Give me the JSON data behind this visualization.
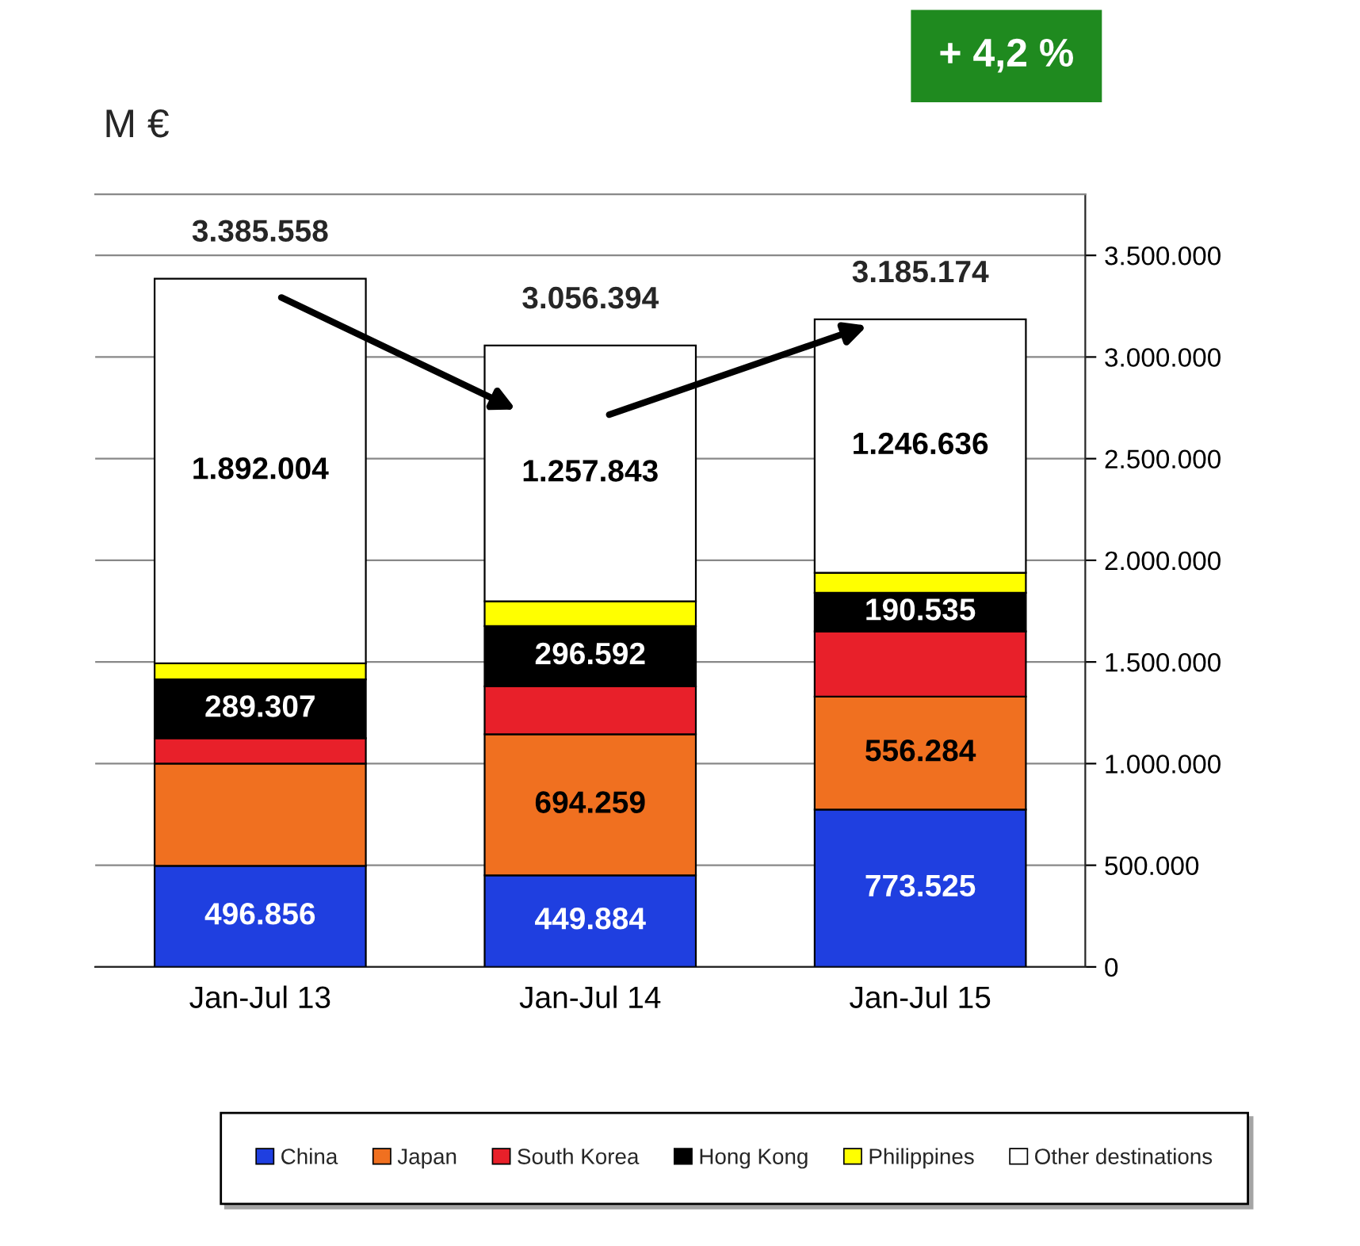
{
  "chart_data": {
    "type": "bar",
    "stacked": true,
    "ylabel": "M €",
    "categories": [
      "Jan-Jul 13",
      "Jan-Jul 14",
      "Jan-Jul 15"
    ],
    "series": [
      {
        "name": "China",
        "color": "#1f3fe0",
        "values": [
          496856,
          449884,
          773525
        ],
        "value_labels": [
          "496.856",
          "449.884",
          "773.525"
        ]
      },
      {
        "name": "Japan",
        "color": "#f07020",
        "values": [
          503000,
          694259,
          556284
        ],
        "value_labels": [
          null,
          "694.259",
          "556.284"
        ]
      },
      {
        "name": "South Korea",
        "color": "#e8202a",
        "values": [
          125000,
          236000,
          320000
        ]
      },
      {
        "name": "Hong Kong",
        "color": "#000000",
        "values": [
          289307,
          296592,
          190535
        ],
        "value_labels": [
          "289.307",
          "296.592",
          "190.535"
        ]
      },
      {
        "name": "Philippines",
        "color": "#ffff00",
        "values": [
          79391,
          121816,
          98194
        ]
      },
      {
        "name": "Other destinations",
        "color": "#ffffff",
        "values": [
          1892004,
          1257843,
          1246636
        ],
        "value_labels": [
          "1.892.004",
          "1.257.843",
          "1.246.636"
        ]
      }
    ],
    "totals": [
      "3.385.558",
      "3.056.394",
      "3.185.174"
    ],
    "ylim": [
      0,
      3800000
    ],
    "yticks": [
      0,
      {
        "value": 500000,
        "label": "500.000"
      },
      {
        "value": 1000000,
        "label": "1.000.000"
      },
      {
        "value": 1500000,
        "label": "1.500.000"
      },
      {
        "value": 2000000,
        "label": "2.000.000"
      },
      {
        "value": 2500000,
        "label": "2.500.000"
      },
      {
        "value": 3000000,
        "label": "3.000.000"
      },
      {
        "value": 3500000,
        "label": "3.500.000"
      }
    ],
    "grid": "y",
    "legend": "bottom",
    "annotations": [
      "+ 4,2 %"
    ]
  }
}
